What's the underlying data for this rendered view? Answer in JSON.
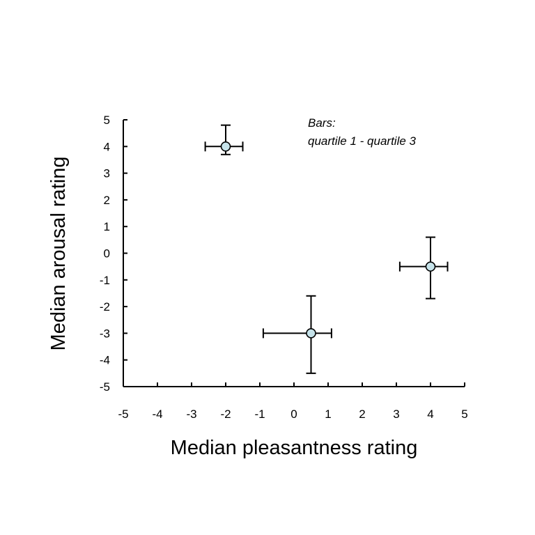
{
  "chart_data": {
    "type": "scatter",
    "xlabel": "Median pleasantness rating",
    "ylabel": "Median arousal rating",
    "xlim": [
      -5,
      5
    ],
    "ylim": [
      -5,
      5
    ],
    "x_ticks": [
      "-5",
      "-4",
      "-3",
      "-2",
      "-1",
      "0",
      "1",
      "2",
      "3",
      "4",
      "5"
    ],
    "y_ticks": [
      "5",
      "4",
      "3",
      "2",
      "1",
      "0",
      "-1",
      "-2",
      "-3",
      "-4",
      "-5"
    ],
    "grid": false,
    "annotation": {
      "line1": "Bars:",
      "line2": "quartile 1 - quartile 3"
    },
    "marker_color": "#c6e3ea",
    "points": [
      {
        "x": -2,
        "y": 4,
        "x_q1": -2.6,
        "x_q3": -1.5,
        "y_q1": 3.7,
        "y_q3": 4.8
      },
      {
        "x": 0.5,
        "y": -3,
        "x_q1": -0.9,
        "x_q3": 1.1,
        "y_q1": -4.5,
        "y_q3": -1.6
      },
      {
        "x": 4,
        "y": -0.5,
        "x_q1": 3.1,
        "x_q3": 4.5,
        "y_q1": -1.7,
        "y_q3": 0.6
      }
    ]
  }
}
